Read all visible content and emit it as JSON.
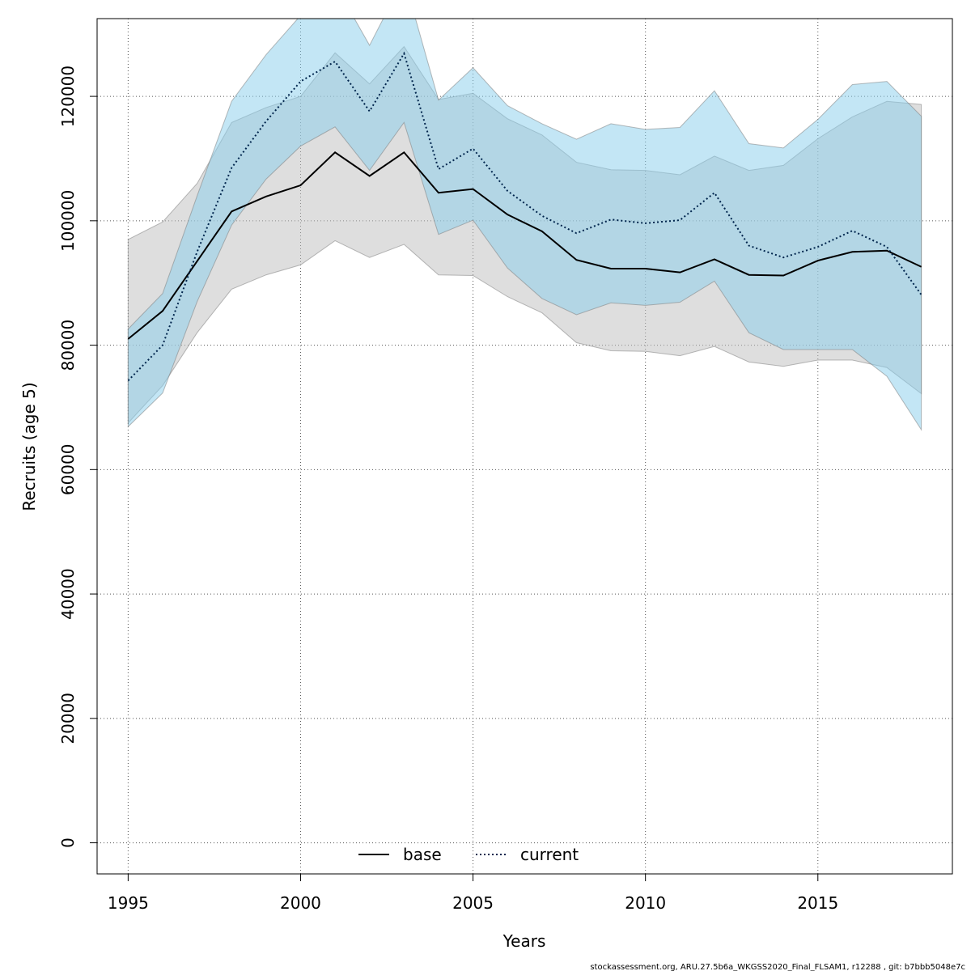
{
  "chart_data": {
    "type": "line",
    "xlabel": "Years",
    "ylabel": "Recruits (age 5)",
    "xlim": [
      1994.1,
      2018.9
    ],
    "ylim": [
      -5000,
      132500
    ],
    "x_ticks": [
      1995,
      2000,
      2005,
      2010,
      2015
    ],
    "y_ticks": [
      0,
      20000,
      40000,
      60000,
      80000,
      100000,
      120000
    ],
    "grid": true,
    "legend": "bottom-center",
    "x": [
      1995,
      1996,
      1997,
      1998,
      1999,
      2000,
      2001,
      2002,
      2003,
      2004,
      2005,
      2006,
      2007,
      2008,
      2009,
      2010,
      2011,
      2012,
      2013,
      2014,
      2015,
      2016,
      2017,
      2018
    ],
    "series": [
      {
        "name": "base",
        "color": "#000000",
        "band_color": "#bebebe",
        "line_style": "solid",
        "values": [
          81000,
          85500,
          93500,
          101500,
          103900,
          105700,
          111000,
          107200,
          111000,
          104500,
          105100,
          101000,
          98300,
          93700,
          92300,
          92300,
          91700,
          93800,
          91300,
          91200,
          93600,
          95000,
          95200,
          92600
        ],
        "lower": [
          67500,
          73500,
          82000,
          89000,
          91300,
          92900,
          96800,
          94100,
          96200,
          91300,
          91200,
          87800,
          85200,
          80400,
          79100,
          79000,
          78300,
          79800,
          77300,
          76600,
          77600,
          77600,
          76400,
          72200
        ],
        "upper": [
          97000,
          99800,
          106000,
          115800,
          118200,
          120000,
          127000,
          122000,
          128000,
          119500,
          120500,
          116400,
          113800,
          109400,
          108200,
          108100,
          107400,
          110400,
          108100,
          108900,
          113200,
          116700,
          119200,
          118700
        ]
      },
      {
        "name": "current",
        "color": "#00254d",
        "band_color": "#87ceeb",
        "line_style": "dotted",
        "values": [
          74300,
          80000,
          95000,
          108500,
          116000,
          122400,
          125600,
          117600,
          126900,
          108300,
          111600,
          104800,
          100800,
          98000,
          100200,
          99600,
          100100,
          104500,
          96000,
          94100,
          95800,
          98400,
          95800,
          88100
        ],
        "lower": [
          66900,
          72300,
          87000,
          99300,
          106700,
          112000,
          115100,
          108100,
          115800,
          97800,
          100100,
          92400,
          87500,
          84900,
          86800,
          86400,
          86900,
          90300,
          82000,
          79300,
          79300,
          79300,
          75000,
          66400
        ],
        "upper": [
          82600,
          88300,
          104000,
          119200,
          126700,
          133000,
          138000,
          128200,
          139000,
          119400,
          124600,
          118500,
          115600,
          113100,
          115600,
          114700,
          115000,
          120900,
          112400,
          111700,
          116300,
          121900,
          122400,
          116800
        ]
      }
    ]
  },
  "footer": {
    "text": "stockassessment.org, ARU.27.5b6a_WKGSS2020_Final_FLSAM1, r12288 , git: b7bbb5048e7c"
  }
}
